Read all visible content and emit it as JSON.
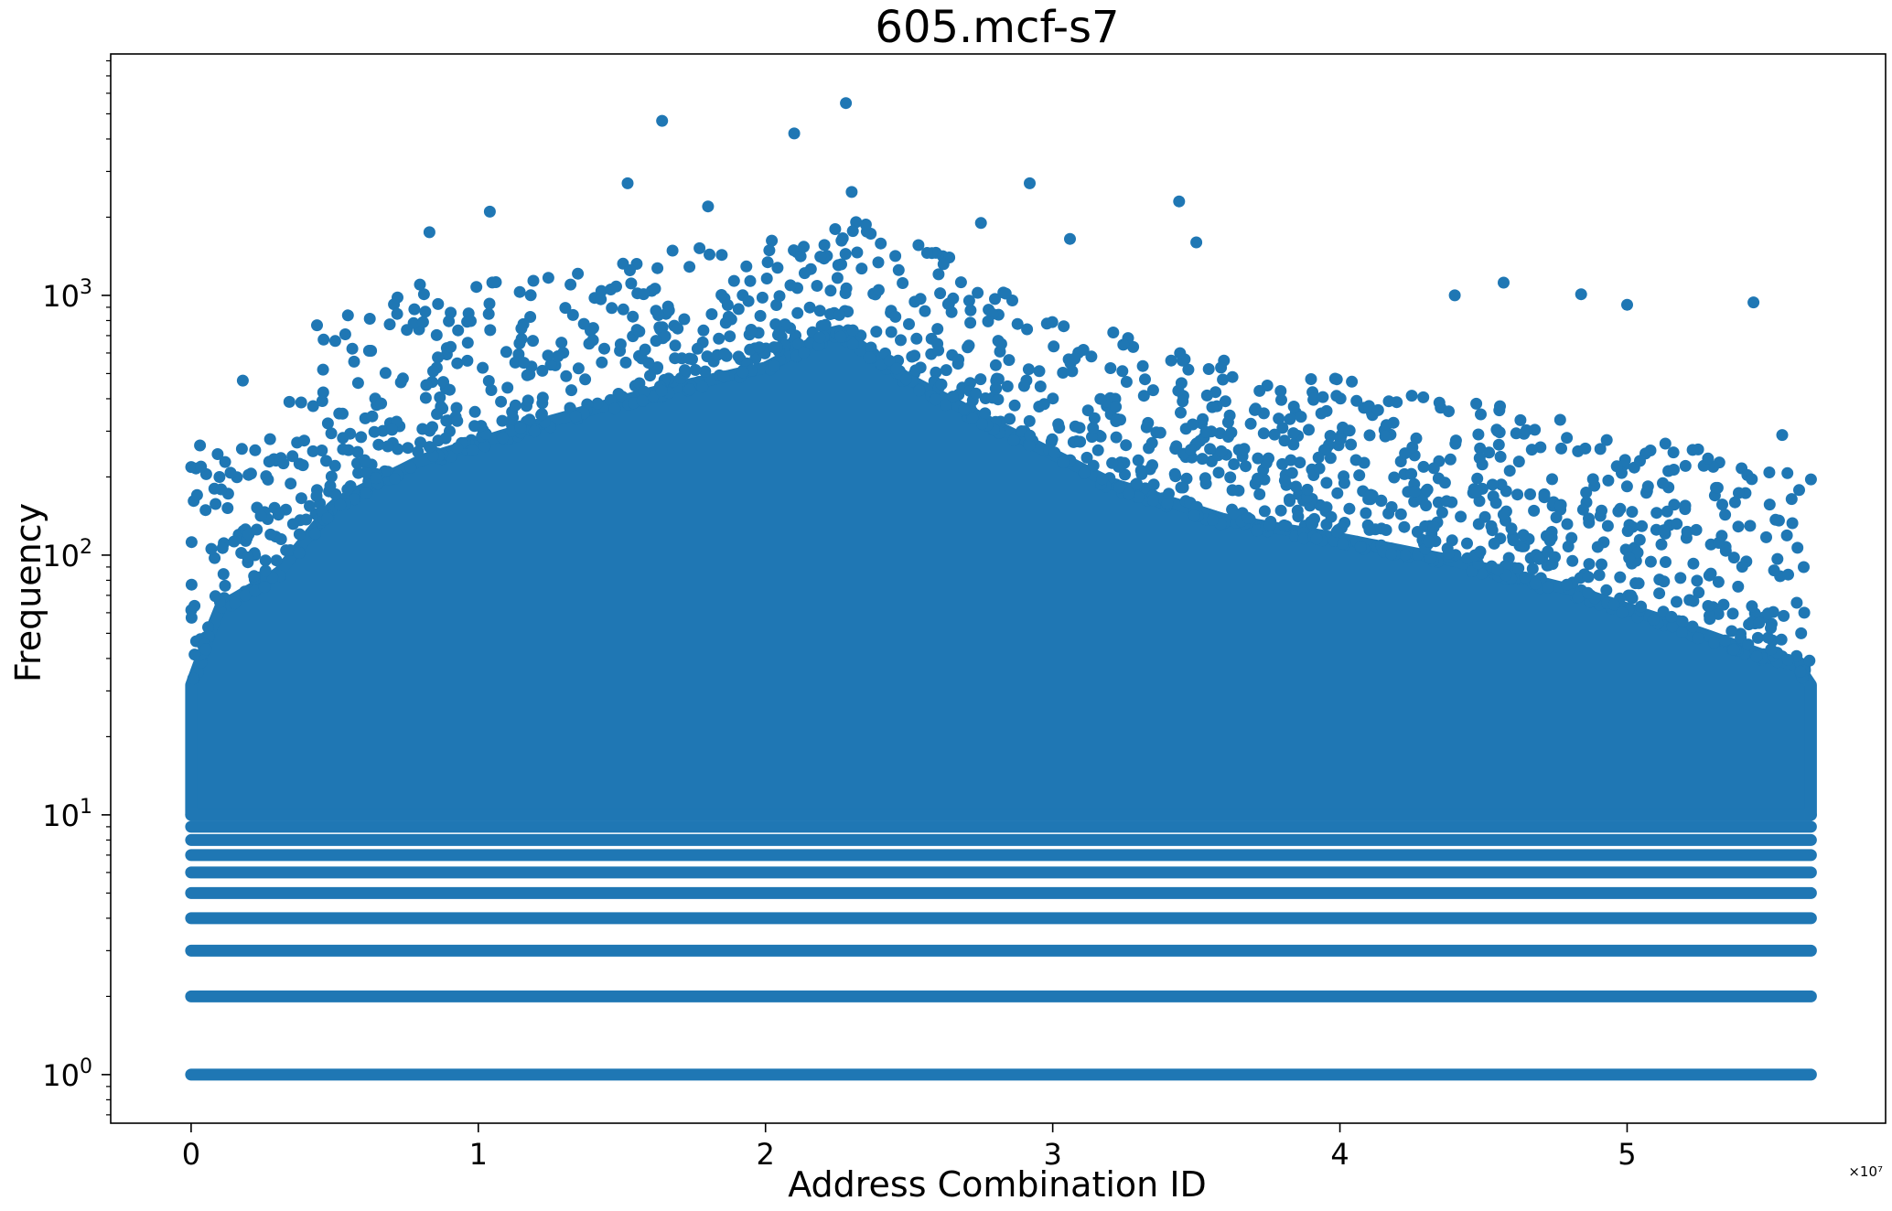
{
  "chart_data": {
    "type": "scatter",
    "title": "605.mcf-s7",
    "xlabel": "Address Combination ID",
    "ylabel": "Frequency",
    "x_scale_label": "×10⁷",
    "x_scale": "linear",
    "y_scale": "log",
    "xlim": [
      -2800000,
      59000000
    ],
    "ylim": [
      0.65,
      8500
    ],
    "x_ticks": [
      {
        "value": 0,
        "label": "0"
      },
      {
        "value": 10000000,
        "label": "1"
      },
      {
        "value": 20000000,
        "label": "2"
      },
      {
        "value": 30000000,
        "label": "3"
      },
      {
        "value": 40000000,
        "label": "4"
      },
      {
        "value": 50000000,
        "label": "5"
      }
    ],
    "y_ticks": [
      {
        "value": 1,
        "base": "10",
        "exp": "0"
      },
      {
        "value": 10,
        "base": "10",
        "exp": "1"
      },
      {
        "value": 100,
        "base": "10",
        "exp": "2"
      },
      {
        "value": 1000,
        "base": "10",
        "exp": "3"
      }
    ],
    "grid": false,
    "legend": "none",
    "marker_color": "#1f77b4",
    "x_range_of_ids": [
      0,
      56400000
    ],
    "discrete_levels": [
      1,
      2,
      3,
      4,
      5,
      6,
      7,
      8,
      9,
      10
    ],
    "dense_band_upper": [
      [
        0,
        30
      ],
      [
        1000000,
        60
      ],
      [
        3000000,
        80
      ],
      [
        5000000,
        150
      ],
      [
        8000000,
        220
      ],
      [
        12000000,
        300
      ],
      [
        16000000,
        400
      ],
      [
        20000000,
        500
      ],
      [
        22500000,
        700
      ],
      [
        25000000,
        450
      ],
      [
        28000000,
        300
      ],
      [
        32000000,
        180
      ],
      [
        36000000,
        130
      ],
      [
        40000000,
        110
      ],
      [
        44000000,
        90
      ],
      [
        48000000,
        70
      ],
      [
        52000000,
        50
      ],
      [
        56000000,
        35
      ],
      [
        56400000,
        30
      ]
    ],
    "sparse_envelope": [
      [
        0,
        300
      ],
      [
        2000000,
        300
      ],
      [
        5000000,
        1000
      ],
      [
        10000000,
        1200
      ],
      [
        15000000,
        1400
      ],
      [
        20000000,
        1700
      ],
      [
        23000000,
        2000
      ],
      [
        26000000,
        1500
      ],
      [
        30000000,
        900
      ],
      [
        35000000,
        600
      ],
      [
        40000000,
        500
      ],
      [
        45000000,
        400
      ],
      [
        50000000,
        300
      ],
      [
        56400000,
        200
      ]
    ],
    "outliers": [
      {
        "x": 1800000,
        "y": 470
      },
      {
        "x": 8300000,
        "y": 1750
      },
      {
        "x": 10400000,
        "y": 2100
      },
      {
        "x": 15200000,
        "y": 2700
      },
      {
        "x": 16400000,
        "y": 4700
      },
      {
        "x": 18000000,
        "y": 2200
      },
      {
        "x": 21000000,
        "y": 4200
      },
      {
        "x": 22800000,
        "y": 5500
      },
      {
        "x": 23000000,
        "y": 2500
      },
      {
        "x": 27500000,
        "y": 1900
      },
      {
        "x": 29200000,
        "y": 2700
      },
      {
        "x": 30600000,
        "y": 1650
      },
      {
        "x": 34400000,
        "y": 2300
      },
      {
        "x": 35000000,
        "y": 1600
      },
      {
        "x": 44000000,
        "y": 1000
      },
      {
        "x": 45700000,
        "y": 1120
      },
      {
        "x": 48400000,
        "y": 1010
      },
      {
        "x": 50000000,
        "y": 920
      },
      {
        "x": 54400000,
        "y": 940
      },
      {
        "x": 55400000,
        "y": 290
      }
    ]
  }
}
